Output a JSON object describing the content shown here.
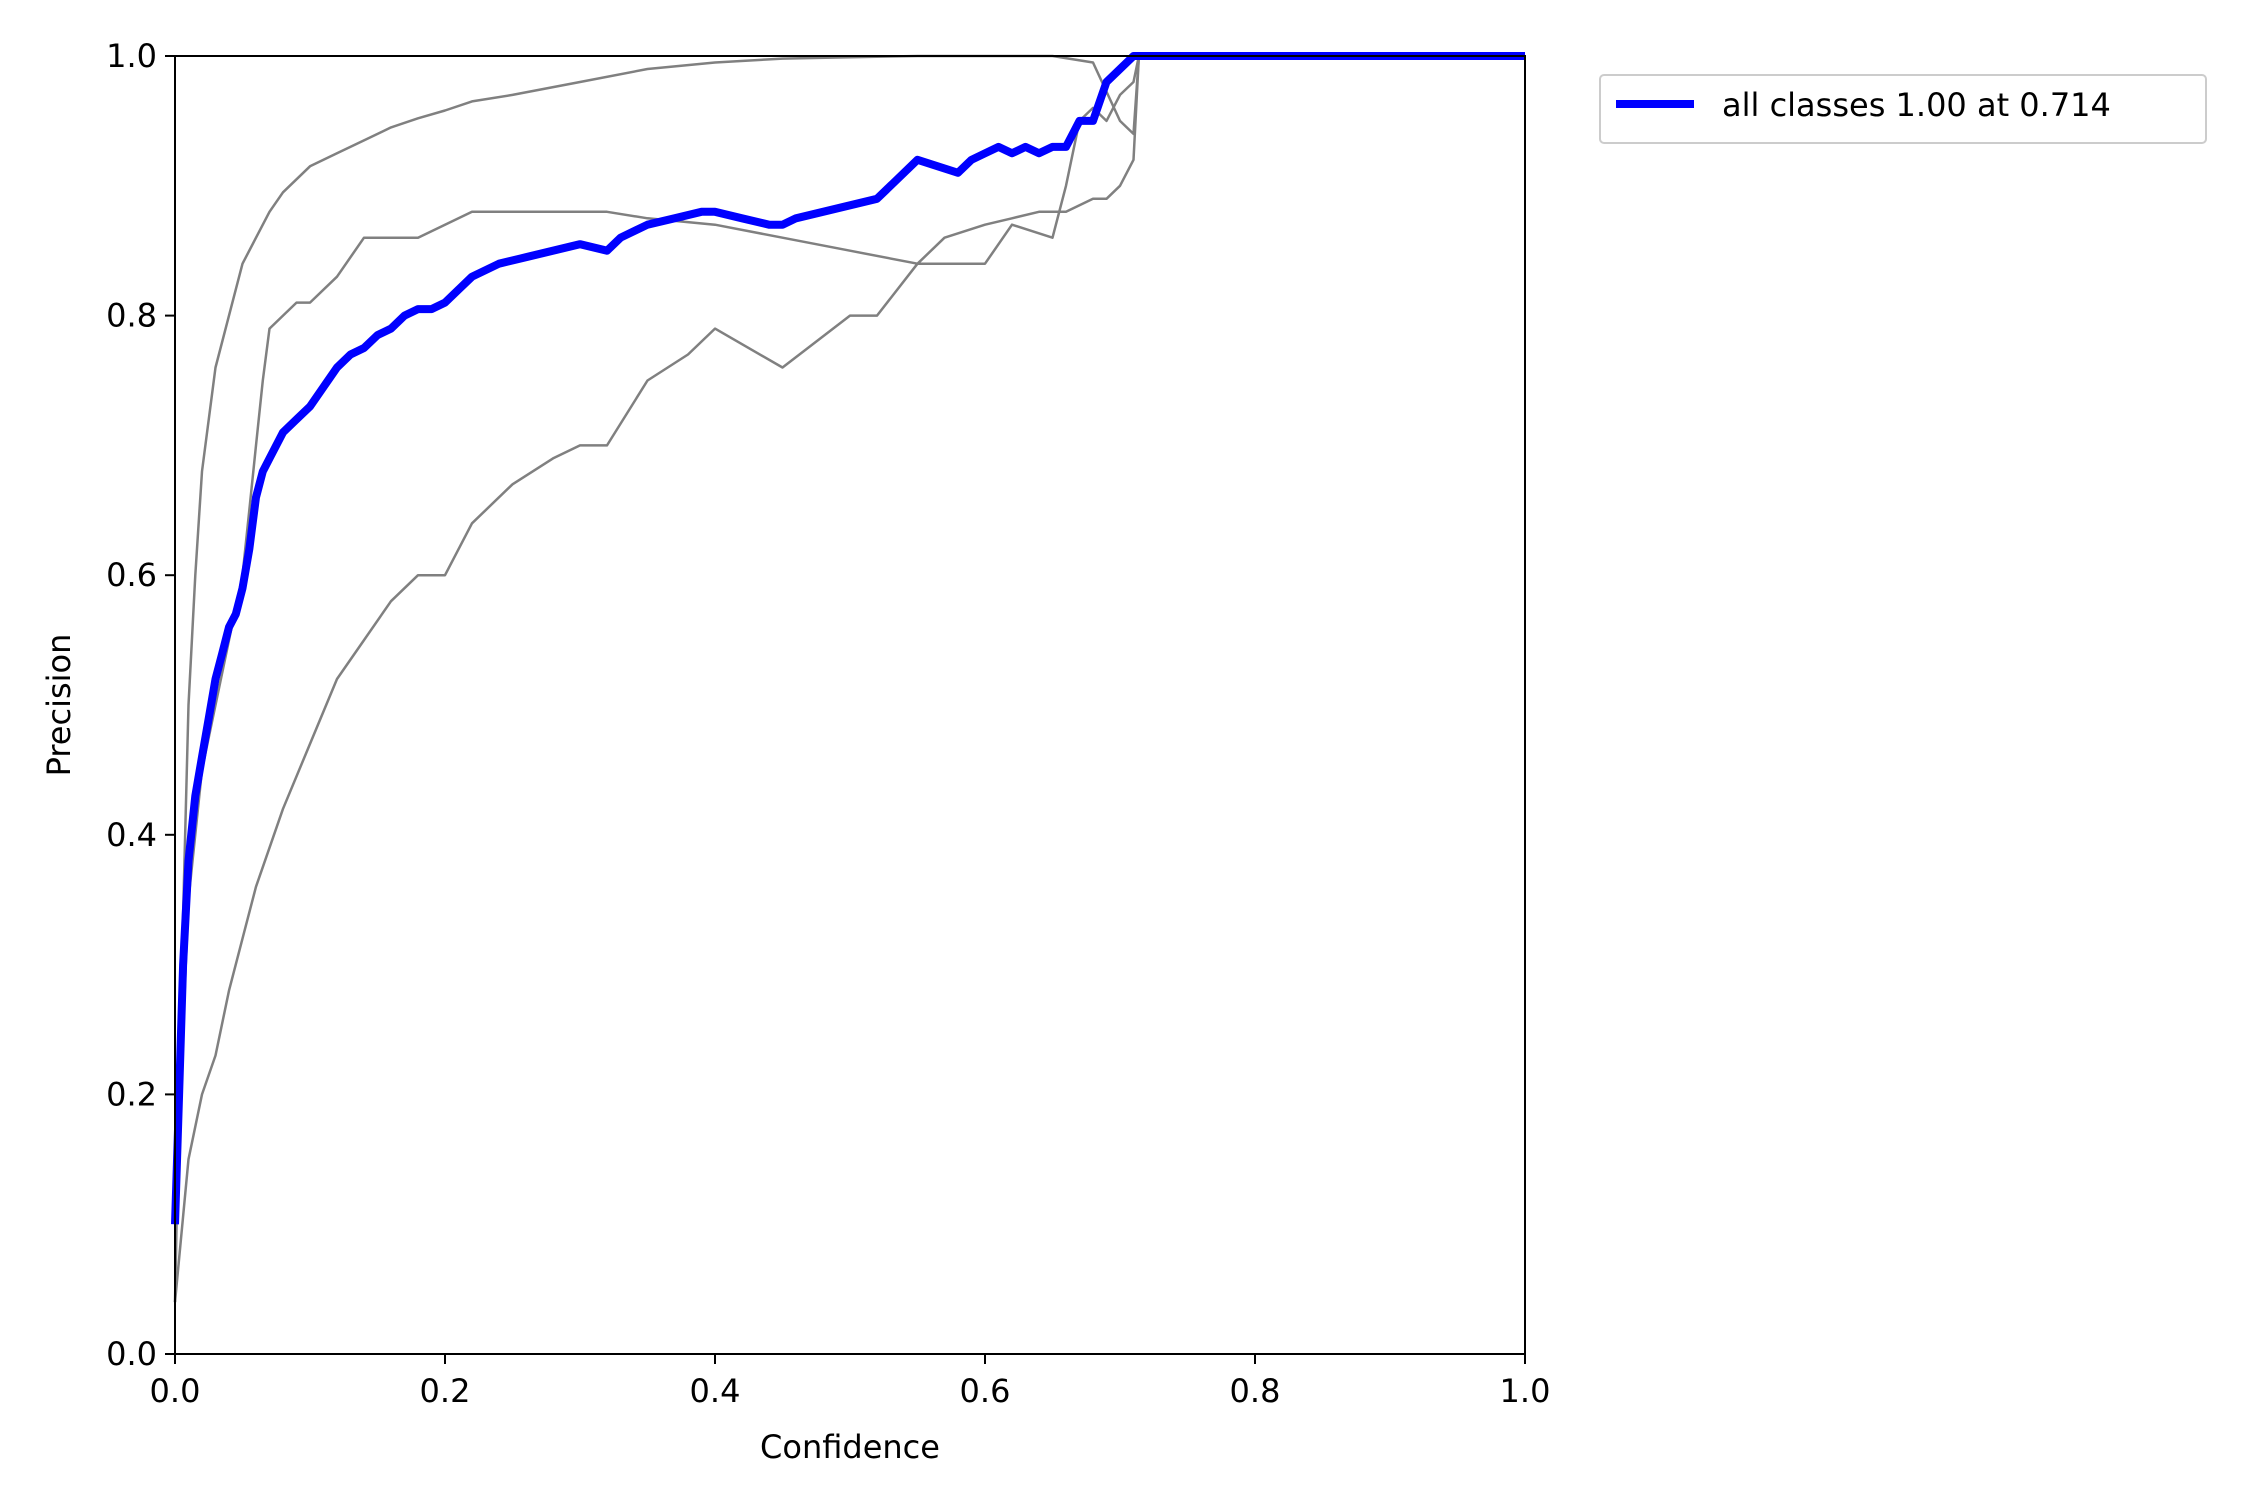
{
  "chart_data": {
    "type": "line",
    "title": "",
    "xlabel": "Confidence",
    "ylabel": "Precision",
    "xlim": [
      0,
      1
    ],
    "ylim": [
      0,
      1
    ],
    "xticks": [
      "0.0",
      "0.2",
      "0.4",
      "0.6",
      "0.8",
      "1.0"
    ],
    "yticks": [
      "0.0",
      "0.2",
      "0.4",
      "0.6",
      "0.8",
      "1.0"
    ],
    "grid": false,
    "legend_placement": "outside-top-right",
    "colors": {
      "summary": "#0000ff",
      "class": "#808080"
    },
    "series": [
      {
        "legend": false,
        "x": [
          0.0,
          0.005,
          0.01,
          0.015,
          0.02,
          0.03,
          0.04,
          0.05,
          0.06,
          0.07,
          0.08,
          0.09,
          0.1,
          0.12,
          0.14,
          0.16,
          0.18,
          0.2,
          0.22,
          0.25,
          0.3,
          0.35,
          0.4,
          0.45,
          0.5,
          0.55,
          0.6,
          0.62,
          0.65,
          0.68,
          0.7,
          0.71,
          0.714,
          1.0
        ],
        "y": [
          0.04,
          0.3,
          0.5,
          0.6,
          0.68,
          0.76,
          0.8,
          0.84,
          0.86,
          0.88,
          0.895,
          0.905,
          0.915,
          0.925,
          0.935,
          0.945,
          0.952,
          0.958,
          0.965,
          0.97,
          0.98,
          0.99,
          0.995,
          0.998,
          0.999,
          1.0,
          1.0,
          1.0,
          1.0,
          0.995,
          0.95,
          0.94,
          1.0,
          1.0
        ]
      },
      {
        "legend": false,
        "x": [
          0.0,
          0.01,
          0.02,
          0.03,
          0.04,
          0.05,
          0.055,
          0.06,
          0.065,
          0.07,
          0.08,
          0.09,
          0.1,
          0.12,
          0.14,
          0.16,
          0.18,
          0.2,
          0.22,
          0.25,
          0.28,
          0.3,
          0.32,
          0.35,
          0.4,
          0.45,
          0.5,
          0.55,
          0.6,
          0.62,
          0.65,
          0.66,
          0.67,
          0.68,
          0.69,
          0.7,
          0.71,
          0.714,
          1.0
        ],
        "y": [
          0.1,
          0.35,
          0.45,
          0.5,
          0.55,
          0.6,
          0.65,
          0.7,
          0.75,
          0.79,
          0.8,
          0.81,
          0.81,
          0.83,
          0.86,
          0.86,
          0.86,
          0.87,
          0.88,
          0.88,
          0.88,
          0.88,
          0.88,
          0.875,
          0.87,
          0.86,
          0.85,
          0.84,
          0.84,
          0.87,
          0.86,
          0.9,
          0.95,
          0.96,
          0.95,
          0.97,
          0.98,
          1.0,
          1.0
        ]
      },
      {
        "legend": false,
        "x": [
          0.0,
          0.01,
          0.02,
          0.03,
          0.04,
          0.05,
          0.06,
          0.08,
          0.1,
          0.12,
          0.14,
          0.16,
          0.18,
          0.2,
          0.22,
          0.25,
          0.28,
          0.3,
          0.32,
          0.35,
          0.38,
          0.4,
          0.45,
          0.5,
          0.52,
          0.55,
          0.57,
          0.6,
          0.62,
          0.64,
          0.66,
          0.67,
          0.68,
          0.69,
          0.7,
          0.71,
          0.714,
          1.0
        ],
        "y": [
          0.04,
          0.15,
          0.2,
          0.23,
          0.28,
          0.32,
          0.36,
          0.42,
          0.47,
          0.52,
          0.55,
          0.58,
          0.6,
          0.6,
          0.64,
          0.67,
          0.69,
          0.7,
          0.7,
          0.75,
          0.77,
          0.79,
          0.76,
          0.8,
          0.8,
          0.84,
          0.86,
          0.87,
          0.875,
          0.88,
          0.88,
          0.885,
          0.89,
          0.89,
          0.9,
          0.92,
          1.0,
          1.0
        ]
      },
      {
        "name": "all classes 1.00 at 0.714",
        "legend": true,
        "x": [
          0.0,
          0.003,
          0.006,
          0.01,
          0.015,
          0.02,
          0.025,
          0.03,
          0.035,
          0.04,
          0.045,
          0.05,
          0.055,
          0.06,
          0.065,
          0.07,
          0.08,
          0.09,
          0.1,
          0.11,
          0.12,
          0.13,
          0.14,
          0.15,
          0.16,
          0.17,
          0.18,
          0.19,
          0.2,
          0.21,
          0.22,
          0.24,
          0.26,
          0.28,
          0.3,
          0.32,
          0.33,
          0.35,
          0.37,
          0.39,
          0.4,
          0.42,
          0.44,
          0.45,
          0.46,
          0.48,
          0.5,
          0.52,
          0.53,
          0.55,
          0.58,
          0.59,
          0.6,
          0.61,
          0.62,
          0.63,
          0.64,
          0.65,
          0.66,
          0.67,
          0.68,
          0.69,
          0.7,
          0.71,
          0.714,
          0.8,
          0.9,
          1.0
        ],
        "y": [
          0.1,
          0.2,
          0.3,
          0.38,
          0.43,
          0.46,
          0.49,
          0.52,
          0.54,
          0.56,
          0.57,
          0.59,
          0.62,
          0.66,
          0.68,
          0.69,
          0.71,
          0.72,
          0.73,
          0.745,
          0.76,
          0.77,
          0.775,
          0.785,
          0.79,
          0.8,
          0.805,
          0.805,
          0.81,
          0.82,
          0.83,
          0.84,
          0.845,
          0.85,
          0.855,
          0.85,
          0.86,
          0.87,
          0.875,
          0.88,
          0.88,
          0.875,
          0.87,
          0.87,
          0.875,
          0.88,
          0.885,
          0.89,
          0.9,
          0.92,
          0.91,
          0.92,
          0.925,
          0.93,
          0.925,
          0.93,
          0.925,
          0.93,
          0.93,
          0.95,
          0.95,
          0.98,
          0.99,
          1.0,
          1.0,
          1.0,
          1.0,
          1.0
        ]
      }
    ]
  }
}
